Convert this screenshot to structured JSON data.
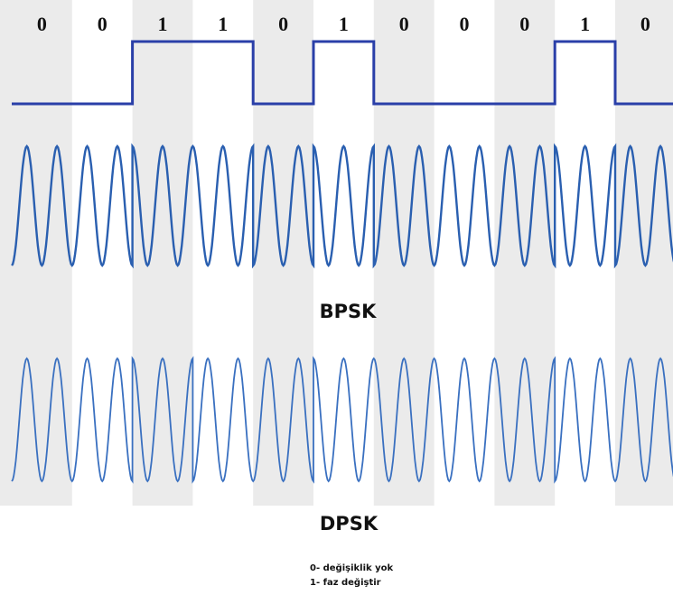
{
  "bits": [
    "0",
    "0",
    "1",
    "1",
    "0",
    "1",
    "0",
    "0",
    "0",
    "1",
    "0"
  ],
  "labels": {
    "bpsk": "BPSK",
    "dpsk": "DPSK"
  },
  "notes": [
    "0- değişiklik yok",
    "1- faz değiştir"
  ]
}
